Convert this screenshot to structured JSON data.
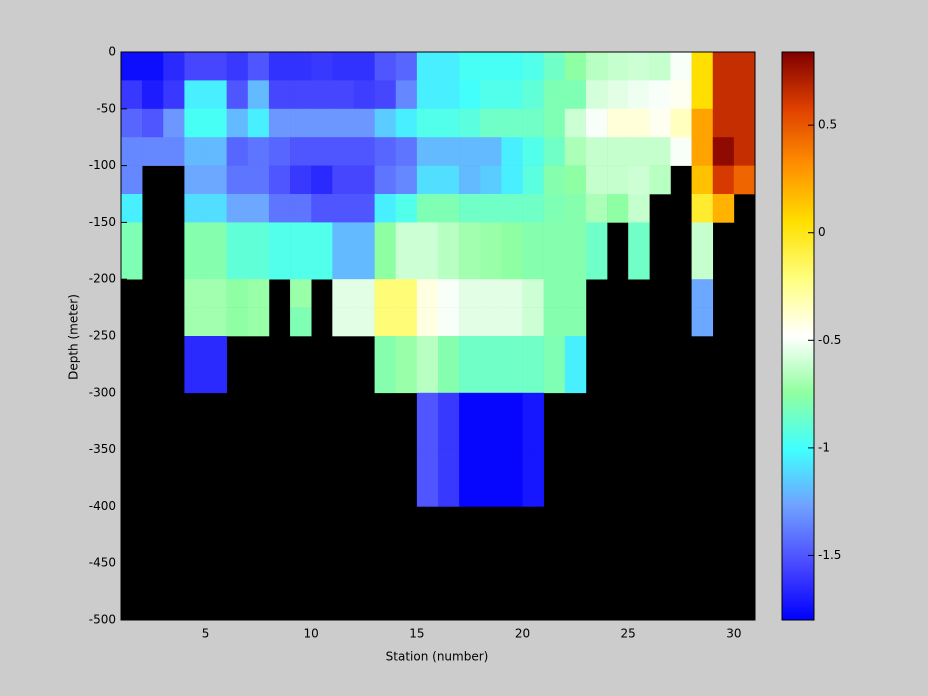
{
  "chart_data": {
    "type": "heatmap",
    "xlabel": "Station (number)",
    "ylabel": "Depth (meter)",
    "x": [
      1,
      2,
      3,
      4,
      5,
      6,
      7,
      8,
      9,
      10,
      11,
      12,
      13,
      14,
      15,
      16,
      17,
      18,
      19,
      20,
      21,
      22,
      23,
      24,
      25,
      26,
      27,
      28,
      29,
      30
    ],
    "y": [
      0,
      -25,
      -50,
      -75,
      -100,
      -125,
      -150,
      -175,
      -200,
      -225,
      -250,
      -275,
      -300,
      -325,
      -350,
      -375
    ],
    "z": [
      [
        -1.75,
        -1.75,
        -1.65,
        -1.55,
        -1.55,
        -1.6,
        -1.5,
        -1.62,
        -1.62,
        -1.6,
        -1.62,
        -1.62,
        -1.5,
        -1.45,
        -1.05,
        -1.05,
        -0.98,
        -0.98,
        -0.98,
        -0.95,
        -0.85,
        -0.75,
        -0.65,
        -0.62,
        -0.6,
        -0.62,
        -0.5,
        0.05,
        0.65,
        0.65
      ],
      [
        -1.6,
        -1.7,
        -1.6,
        -1.05,
        -1.05,
        -1.5,
        -1.2,
        -1.55,
        -1.55,
        -1.55,
        -1.55,
        -1.58,
        -1.55,
        -1.35,
        -1.05,
        -1.05,
        -1.0,
        -0.95,
        -0.95,
        -0.9,
        -0.8,
        -0.8,
        -0.58,
        -0.55,
        -0.52,
        -0.5,
        -0.45,
        0.05,
        0.65,
        0.65
      ],
      [
        -1.45,
        -1.5,
        -1.3,
        -0.98,
        -0.98,
        -1.2,
        -1.05,
        -1.3,
        -1.3,
        -1.3,
        -1.3,
        -1.3,
        -1.15,
        -1.05,
        -0.95,
        -0.95,
        -0.92,
        -0.85,
        -0.85,
        -0.85,
        -0.8,
        -0.6,
        -0.5,
        -0.4,
        -0.4,
        -0.45,
        -0.35,
        0.25,
        0.65,
        0.65
      ],
      [
        -1.35,
        -1.35,
        -1.35,
        -1.2,
        -1.2,
        -1.45,
        -1.4,
        -1.45,
        -1.5,
        -1.5,
        -1.5,
        -1.5,
        -1.45,
        -1.4,
        -1.2,
        -1.2,
        -1.2,
        -1.2,
        -1.05,
        -0.95,
        -0.85,
        -0.68,
        -0.62,
        -0.62,
        -0.62,
        -0.62,
        -0.5,
        0.25,
        0.8,
        0.65
      ],
      [
        -1.35,
        null,
        null,
        -1.25,
        -1.25,
        -1.4,
        -1.4,
        -1.5,
        -1.6,
        -1.65,
        -1.55,
        -1.55,
        -1.4,
        -1.35,
        -1.1,
        -1.1,
        -1.2,
        -1.15,
        -1.05,
        -0.92,
        -0.78,
        -0.75,
        -0.62,
        -0.62,
        -0.6,
        -0.65,
        null,
        0.15,
        0.6,
        0.45
      ],
      [
        -1.05,
        null,
        null,
        -1.1,
        -1.1,
        -1.25,
        -1.25,
        -1.4,
        -1.4,
        -1.5,
        -1.5,
        -1.5,
        -1.05,
        -0.95,
        -0.8,
        -0.8,
        -0.85,
        -0.85,
        -0.85,
        -0.85,
        -0.8,
        -0.78,
        -0.68,
        -0.75,
        -0.62,
        null,
        null,
        -0.05,
        0.2,
        null
      ],
      [
        -0.8,
        null,
        null,
        -0.78,
        -0.78,
        -0.9,
        -0.9,
        -0.95,
        -0.95,
        -0.95,
        -1.2,
        -1.2,
        -0.75,
        -0.6,
        -0.6,
        -0.65,
        -0.7,
        -0.72,
        -0.75,
        -0.78,
        -0.78,
        -0.78,
        -0.85,
        null,
        -0.85,
        null,
        null,
        -0.62,
        null,
        null
      ],
      [
        -0.8,
        null,
        null,
        -0.78,
        -0.78,
        -0.9,
        -0.9,
        -0.95,
        -0.95,
        -0.95,
        -1.2,
        -1.2,
        -0.75,
        -0.6,
        -0.6,
        -0.65,
        -0.7,
        -0.72,
        -0.75,
        -0.78,
        -0.78,
        -0.78,
        -0.85,
        null,
        -0.85,
        null,
        null,
        -0.62,
        null,
        null
      ],
      [
        null,
        null,
        null,
        -0.7,
        -0.7,
        -0.75,
        -0.72,
        null,
        -0.72,
        null,
        -0.55,
        -0.55,
        -0.2,
        -0.2,
        -0.42,
        -0.5,
        -0.55,
        -0.55,
        -0.55,
        -0.6,
        -0.78,
        -0.78,
        null,
        null,
        null,
        null,
        null,
        -1.25,
        null,
        null
      ],
      [
        null,
        null,
        null,
        -0.7,
        -0.7,
        -0.75,
        -0.72,
        null,
        -0.8,
        null,
        -0.55,
        -0.55,
        -0.2,
        -0.2,
        -0.42,
        -0.5,
        -0.55,
        -0.55,
        -0.55,
        -0.6,
        -0.78,
        -0.78,
        null,
        null,
        null,
        null,
        null,
        -1.25,
        null,
        null
      ],
      [
        null,
        null,
        null,
        -1.65,
        -1.65,
        null,
        null,
        null,
        null,
        null,
        null,
        null,
        -0.78,
        -0.72,
        -0.65,
        -0.78,
        -0.85,
        -0.85,
        -0.85,
        -0.85,
        -0.8,
        -1.05,
        null,
        null,
        null,
        null,
        null,
        null,
        null,
        null
      ],
      [
        null,
        null,
        null,
        -1.65,
        -1.65,
        null,
        null,
        null,
        null,
        null,
        null,
        null,
        -0.78,
        -0.72,
        -0.65,
        -0.78,
        -0.85,
        -0.85,
        -0.85,
        -0.85,
        -0.8,
        -1.05,
        null,
        null,
        null,
        null,
        null,
        null,
        null,
        null
      ],
      [
        null,
        null,
        null,
        null,
        null,
        null,
        null,
        null,
        null,
        null,
        null,
        null,
        null,
        null,
        -1.5,
        -1.6,
        -1.78,
        -1.78,
        -1.78,
        -1.72,
        null,
        null,
        null,
        null,
        null,
        null,
        null,
        null,
        null,
        null
      ],
      [
        null,
        null,
        null,
        null,
        null,
        null,
        null,
        null,
        null,
        null,
        null,
        null,
        null,
        null,
        -1.5,
        -1.6,
        -1.78,
        -1.78,
        -1.78,
        -1.72,
        null,
        null,
        null,
        null,
        null,
        null,
        null,
        null,
        null,
        null
      ],
      [
        null,
        null,
        null,
        null,
        null,
        null,
        null,
        null,
        null,
        null,
        null,
        null,
        null,
        null,
        -1.5,
        -1.6,
        -1.78,
        -1.78,
        -1.78,
        -1.72,
        null,
        null,
        null,
        null,
        null,
        null,
        null,
        null,
        null,
        null
      ],
      [
        null,
        null,
        null,
        null,
        null,
        null,
        null,
        null,
        null,
        null,
        null,
        null,
        null,
        null,
        -1.5,
        -1.6,
        -1.78,
        -1.78,
        -1.78,
        -1.72,
        null,
        null,
        null,
        null,
        null,
        null,
        null,
        null,
        null,
        null
      ]
    ],
    "xlim": [
      1,
      31
    ],
    "ylim": [
      -500,
      0
    ],
    "xticks": [
      5,
      10,
      15,
      20,
      25,
      30
    ],
    "yticks": [
      0,
      -50,
      -100,
      -150,
      -200,
      -250,
      -300,
      -350,
      -400,
      -450,
      -500
    ],
    "clim": [
      -1.8,
      0.84
    ],
    "cticks": [
      -1.5,
      -1,
      -0.5,
      0,
      0.5
    ],
    "colormap": [
      "#0000ff",
      "#4a4aff",
      "#70a0ff",
      "#40ffff",
      "#90ffa0",
      "#ffffff",
      "#ffff80",
      "#ffe000",
      "#ff9000",
      "#e04000",
      "#800000"
    ],
    "background": "#000000"
  }
}
